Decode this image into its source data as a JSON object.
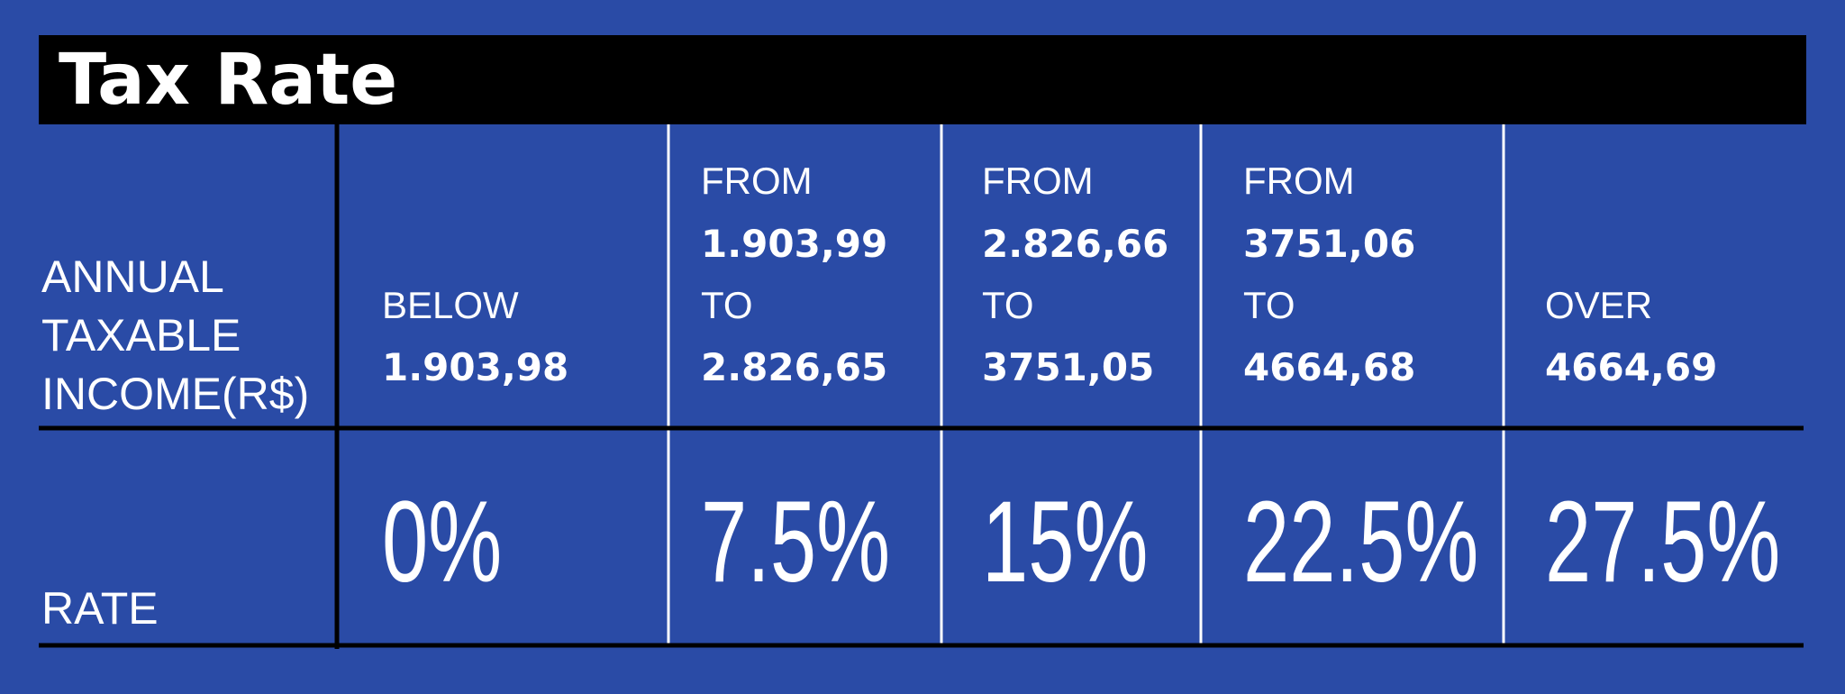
{
  "title": "Tax Rate",
  "table": {
    "row_headers": [
      [
        "ANNUAL",
        "TAXABLE",
        "INCOME(R$)"
      ],
      [
        "RATE"
      ]
    ],
    "columns": [
      {
        "income": [
          "BELOW",
          "1.903,98"
        ],
        "rate": "0%"
      },
      {
        "income": [
          "FROM",
          "1.903,99",
          "TO",
          "2.826,65"
        ],
        "rate": "7.5%"
      },
      {
        "income": [
          "FROM",
          "2.826,66",
          "TO",
          "3751,05"
        ],
        "rate": "15%"
      },
      {
        "income": [
          "FROM",
          "3751,06",
          "TO",
          "4664,68"
        ],
        "rate": "22.5%"
      },
      {
        "income": [
          "OVER",
          "4664,69"
        ],
        "rate": "27.5%"
      }
    ]
  }
}
